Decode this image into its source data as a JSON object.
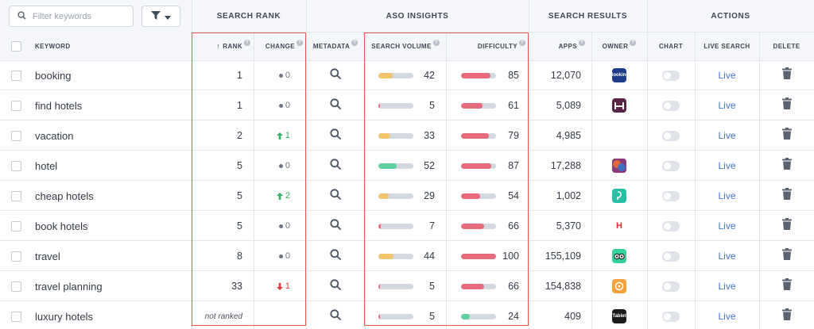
{
  "filter": {
    "placeholder": "Filter keywords"
  },
  "groups": {
    "search_rank": "SEARCH RANK",
    "aso_insights": "ASO INSIGHTS",
    "search_results": "SEARCH RESULTS",
    "actions": "ACTIONS"
  },
  "columns": {
    "keyword": "KEYWORD",
    "rank": "RANK",
    "change": "CHANGE",
    "metadata": "METADATA",
    "search_volume": "SEARCH VOLUME",
    "difficulty": "DIFFICULTY",
    "apps": "APPS",
    "owner": "OWNER",
    "chart": "CHART",
    "live_search": "LIVE SEARCH",
    "delete": "DELETE"
  },
  "sort": {
    "rank_arrow": "↑"
  },
  "colors": {
    "volume_low": "#f2c46d",
    "volume_high": "#5fd1a0",
    "volume_minimal": "#e76b7c",
    "difficulty_high": "#e76b7c",
    "difficulty_low": "#5fd1a0",
    "change_up": "#2fb55d",
    "change_down": "#e53935",
    "highlight_box": "#e05c4b"
  },
  "live_label": "Live",
  "rows": [
    {
      "keyword": "booking",
      "rank": "1",
      "change": {
        "dir": "none",
        "value": "0"
      },
      "volume": 42,
      "volume_color": "#f2c46d",
      "difficulty": 85,
      "difficulty_color": "#e76b7c",
      "apps": "12,070",
      "owner": {
        "icon": "booking-app-icon",
        "label": "Booking",
        "bg": "#1f3c88"
      }
    },
    {
      "keyword": "find hotels",
      "rank": "1",
      "change": {
        "dir": "none",
        "value": "0"
      },
      "volume": 5,
      "volume_color": "#e76b7c",
      "difficulty": 61,
      "difficulty_color": "#e76b7c",
      "apps": "5,089",
      "owner": {
        "icon": "bed-app-icon",
        "label": "",
        "bg": "#5a2446"
      }
    },
    {
      "keyword": "vacation",
      "rank": "2",
      "change": {
        "dir": "up",
        "value": "1"
      },
      "volume": 33,
      "volume_color": "#f2c46d",
      "difficulty": 79,
      "difficulty_color": "#e76b7c",
      "apps": "4,985",
      "owner": null
    },
    {
      "keyword": "hotel",
      "rank": "5",
      "change": {
        "dir": "none",
        "value": "0"
      },
      "volume": 52,
      "volume_color": "#5fd1a0",
      "difficulty": 87,
      "difficulty_color": "#e76b7c",
      "apps": "17,288",
      "owner": {
        "icon": "colorful-app-icon",
        "label": "",
        "bg": "#c0472e"
      }
    },
    {
      "keyword": "cheap hotels",
      "rank": "5",
      "change": {
        "dir": "up",
        "value": "2"
      },
      "volume": 29,
      "volume_color": "#f2c46d",
      "difficulty": 54,
      "difficulty_color": "#e76b7c",
      "apps": "1,002",
      "owner": {
        "icon": "hopper-app-icon",
        "label": "",
        "bg": "#26c0a6"
      }
    },
    {
      "keyword": "book hotels",
      "rank": "5",
      "change": {
        "dir": "none",
        "value": "0"
      },
      "volume": 7,
      "volume_color": "#e76b7c",
      "difficulty": 66,
      "difficulty_color": "#e76b7c",
      "apps": "5,370",
      "owner": {
        "icon": "hotels-com-app-icon",
        "label": "H",
        "bg": "#ffffff"
      }
    },
    {
      "keyword": "travel",
      "rank": "8",
      "change": {
        "dir": "none",
        "value": "0"
      },
      "volume": 44,
      "volume_color": "#f2c46d",
      "difficulty": 100,
      "difficulty_color": "#e76b7c",
      "apps": "155,109",
      "owner": {
        "icon": "tripadvisor-app-icon",
        "label": "",
        "bg": "#34d19a"
      }
    },
    {
      "keyword": "travel planning",
      "rank": "33",
      "change": {
        "dir": "down",
        "value": "1"
      },
      "volume": 5,
      "volume_color": "#e76b7c",
      "difficulty": 66,
      "difficulty_color": "#e76b7c",
      "apps": "154,838",
      "owner": {
        "icon": "planner-app-icon",
        "label": "",
        "bg": "#f5a13d"
      }
    },
    {
      "keyword": "luxury hotels",
      "rank": "not ranked",
      "change": {
        "dir": "blank",
        "value": ""
      },
      "volume": 5,
      "volume_color": "#e76b7c",
      "difficulty": 24,
      "difficulty_color": "#5fd1a0",
      "apps": "409",
      "owner": {
        "icon": "tablet-app-icon",
        "label": "Tablet",
        "bg": "#1b1b1b"
      }
    }
  ]
}
